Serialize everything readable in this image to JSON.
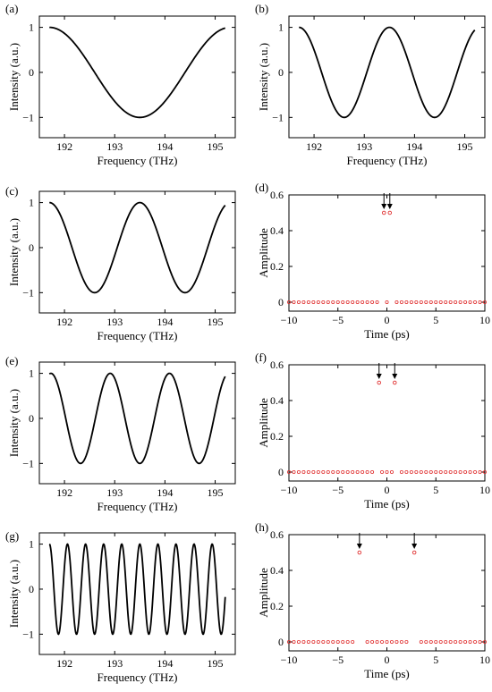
{
  "chart_data": [
    {
      "panel": "(a)",
      "type": "line",
      "xlabel": "Frequency (THz)",
      "ylabel": "Intensity (a.u.)",
      "xlim": [
        191.5,
        195.4
      ],
      "ylim": [
        -1.45,
        1.25
      ],
      "xticks": [
        192,
        193,
        194,
        195
      ],
      "yticks": [
        -1,
        0,
        1
      ],
      "series": [
        {
          "function": "cos",
          "period_thz": 3.6,
          "center_thz": 193.5,
          "min_at_center": true,
          "x_range": [
            191.7,
            195.2
          ]
        }
      ]
    },
    {
      "panel": "(b)",
      "type": "line",
      "xlabel": "Frequency (THz)",
      "ylabel": "Intensity (a.u.)",
      "xlim": [
        191.5,
        195.4
      ],
      "ylim": [
        -1.45,
        1.25
      ],
      "xticks": [
        192,
        193,
        194,
        195
      ],
      "yticks": [
        -1,
        0,
        1
      ],
      "series": [
        {
          "function": "cos",
          "period_thz": 1.8,
          "center_thz": 193.5,
          "min_at_center": false,
          "x_range": [
            191.7,
            195.2
          ]
        }
      ]
    },
    {
      "panel": "(c)",
      "type": "line",
      "xlabel": "Frequency (THz)",
      "ylabel": "Intensity (a.u.)",
      "xlim": [
        191.5,
        195.4
      ],
      "ylim": [
        -1.45,
        1.25
      ],
      "xticks": [
        192,
        193,
        194,
        195
      ],
      "yticks": [
        -1,
        0,
        1
      ],
      "series": [
        {
          "function": "cos",
          "period_thz": 1.8,
          "center_thz": 193.5,
          "min_at_center": false,
          "x_range": [
            191.7,
            195.2
          ]
        }
      ]
    },
    {
      "panel": "(d)",
      "type": "scatter",
      "xlabel": "Time (ps)",
      "ylabel": "Amplitude",
      "xlim": [
        -10,
        10
      ],
      "ylim": [
        -0.05,
        0.6
      ],
      "xticks": [
        -10,
        -5,
        0,
        5,
        10
      ],
      "yticks": [
        0,
        0.2,
        0.4,
        0.6
      ],
      "baseline": {
        "x_start": -10,
        "x_end": 10,
        "step": 0.5,
        "value": 0
      },
      "peaks": [
        {
          "x": -0.3,
          "y": 0.5
        },
        {
          "x": 0.3,
          "y": 0.5
        }
      ]
    },
    {
      "panel": "(e)",
      "type": "line",
      "xlabel": "Frequency (THz)",
      "ylabel": "Intensity (a.u.)",
      "xlim": [
        191.5,
        195.4
      ],
      "ylim": [
        -1.45,
        1.25
      ],
      "xticks": [
        192,
        193,
        194,
        195
      ],
      "yticks": [
        -1,
        0,
        1
      ],
      "series": [
        {
          "function": "cos",
          "period_thz": 1.18,
          "center_thz": 193.5,
          "min_at_center": true,
          "x_range": [
            191.7,
            195.2
          ]
        }
      ]
    },
    {
      "panel": "(f)",
      "type": "scatter",
      "xlabel": "Time (ps)",
      "ylabel": "Amplitude",
      "xlim": [
        -10,
        10
      ],
      "ylim": [
        -0.05,
        0.6
      ],
      "xticks": [
        -10,
        -5,
        0,
        5,
        10
      ],
      "yticks": [
        0,
        0.2,
        0.4,
        0.6
      ],
      "baseline": {
        "x_start": -10,
        "x_end": 10,
        "step": 0.5,
        "value": 0
      },
      "peaks": [
        {
          "x": -0.8,
          "y": 0.5
        },
        {
          "x": 0.8,
          "y": 0.5
        }
      ]
    },
    {
      "panel": "(g)",
      "type": "line",
      "xlabel": "Frequency (THz)",
      "ylabel": "Intensity (a.u.)",
      "xlim": [
        191.5,
        195.4
      ],
      "ylim": [
        -1.45,
        1.25
      ],
      "xticks": [
        192,
        193,
        194,
        195
      ],
      "yticks": [
        -1,
        0,
        1
      ],
      "series": [
        {
          "function": "cos",
          "period_thz": 0.36,
          "center_thz": 193.5,
          "min_at_center": false,
          "x_range": [
            191.7,
            195.2
          ]
        }
      ]
    },
    {
      "panel": "(h)",
      "type": "scatter",
      "xlabel": "Time (ps)",
      "ylabel": "Amplitude",
      "xlim": [
        -10,
        10
      ],
      "ylim": [
        -0.05,
        0.6
      ],
      "xticks": [
        -10,
        -5,
        0,
        5,
        10
      ],
      "yticks": [
        0,
        0.2,
        0.4,
        0.6
      ],
      "baseline": {
        "x_start": -10,
        "x_end": 10,
        "step": 0.5,
        "value": 0
      },
      "peaks": [
        {
          "x": -2.8,
          "y": 0.5
        },
        {
          "x": 2.8,
          "y": 0.5
        }
      ]
    }
  ],
  "colors": {
    "curve": "#000000",
    "marker": "#e03030",
    "axis": "#000000"
  }
}
